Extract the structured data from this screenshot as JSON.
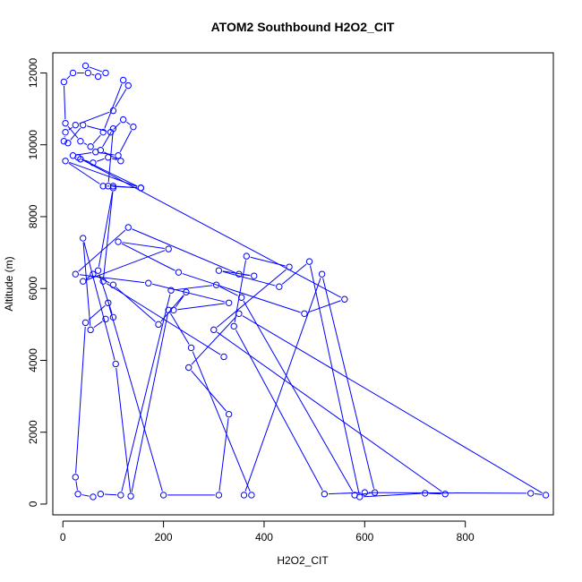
{
  "chart_data": {
    "type": "line",
    "title": "ATOM2 Southbound H2O2_CIT",
    "xlabel": "H2O2_CIT",
    "ylabel": "Altitude (m)",
    "xlim": [
      -20,
      975
    ],
    "ylim": [
      -300,
      12560
    ],
    "xticks": [
      0,
      200,
      400,
      600,
      800
    ],
    "yticks": [
      0,
      2000,
      4000,
      6000,
      8000,
      10000,
      12000
    ],
    "grid": false,
    "legend": "none",
    "series_color": "#0000ff",
    "marker": "open-circle",
    "x": [
      45,
      85,
      70,
      50,
      20,
      2,
      5,
      35,
      55,
      80,
      120,
      130,
      100,
      25,
      5,
      2,
      10,
      40,
      95,
      120,
      140,
      110,
      65,
      20,
      35,
      60,
      90,
      115,
      75,
      100,
      90,
      155,
      5,
      80,
      100,
      155,
      30,
      560,
      480,
      230,
      110,
      210,
      40,
      60,
      100,
      190,
      245,
      220,
      330,
      170,
      25,
      130,
      350,
      380,
      310,
      430,
      490,
      590,
      720,
      760,
      300,
      450,
      365,
      340,
      520,
      600,
      930,
      960,
      350,
      250,
      330,
      310,
      200,
      90,
      45,
      25,
      30,
      60,
      75,
      115,
      215,
      305,
      355,
      580,
      620,
      515,
      360,
      375,
      255,
      210,
      135,
      105,
      40,
      55,
      85,
      100,
      70,
      100,
      80,
      320
    ],
    "y": [
      12200,
      12000,
      11900,
      12000,
      12000,
      11750,
      10600,
      10100,
      9950,
      10350,
      11800,
      11650,
      10950,
      10550,
      10350,
      10100,
      10050,
      10550,
      10350,
      10700,
      10500,
      9700,
      9800,
      9700,
      9600,
      9500,
      9650,
      9550,
      9850,
      10450,
      8850,
      8800,
      9550,
      8850,
      8850,
      8800,
      9650,
      5700,
      5300,
      6450,
      7300,
      7100,
      6200,
      6400,
      6100,
      5000,
      5900,
      5400,
      5600,
      6150,
      6400,
      7700,
      6400,
      6350,
      6500,
      6050,
      6750,
      200,
      300,
      280,
      4850,
      6600,
      6900,
      4950,
      280,
      320,
      300,
      250,
      5300,
      3800,
      2500,
      250,
      250,
      5600,
      5050,
      750,
      280,
      200,
      280,
      250,
      5950,
      6100,
      5750,
      250,
      320,
      6400,
      250,
      250,
      4350,
      5400,
      220,
      3900,
      7400,
      4850,
      5150,
      5200,
      6500,
      8800,
      6200,
      4100
    ]
  }
}
